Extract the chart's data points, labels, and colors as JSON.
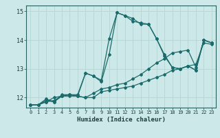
{
  "xlabel": "Humidex (Indice chaleur)",
  "ylabel": "",
  "bg_color": "#cce8e8",
  "grid_color": "#b8d8d8",
  "line_color": "#1a6b6b",
  "xlim": [
    -0.5,
    23.5
  ],
  "ylim": [
    11.65,
    15.2
  ],
  "yticks": [
    12,
    13,
    14,
    15
  ],
  "xticks": [
    0,
    1,
    2,
    3,
    4,
    5,
    6,
    7,
    8,
    9,
    10,
    11,
    12,
    13,
    14,
    15,
    16,
    17,
    18,
    19,
    20,
    21,
    22,
    23
  ],
  "series": [
    [
      11.75,
      11.75,
      11.85,
      11.9,
      12.05,
      12.05,
      12.05,
      12.0,
      12.0,
      12.2,
      12.25,
      12.3,
      12.35,
      12.4,
      12.5,
      12.6,
      12.7,
      12.8,
      12.95,
      13.0,
      13.1,
      13.15,
      13.9,
      13.85
    ],
    [
      11.75,
      11.75,
      11.85,
      12.0,
      12.05,
      12.1,
      12.05,
      12.0,
      12.15,
      12.3,
      12.35,
      12.45,
      12.5,
      12.65,
      12.8,
      13.0,
      13.2,
      13.35,
      13.55,
      13.6,
      13.65,
      13.05,
      14.0,
      13.9
    ],
    [
      11.75,
      11.75,
      11.9,
      11.85,
      12.05,
      12.1,
      12.05,
      12.85,
      12.75,
      12.55,
      13.5,
      14.95,
      14.85,
      14.75,
      14.55,
      14.55,
      14.05,
      13.5,
      13.05,
      13.0,
      13.1,
      12.95,
      14.0,
      13.9
    ],
    [
      11.75,
      11.75,
      11.95,
      11.85,
      12.1,
      12.1,
      12.1,
      12.85,
      12.75,
      12.6,
      14.05,
      14.95,
      14.85,
      14.65,
      14.6,
      14.55,
      14.05,
      13.45,
      13.05,
      13.0,
      13.1,
      12.95,
      14.0,
      13.9
    ]
  ]
}
